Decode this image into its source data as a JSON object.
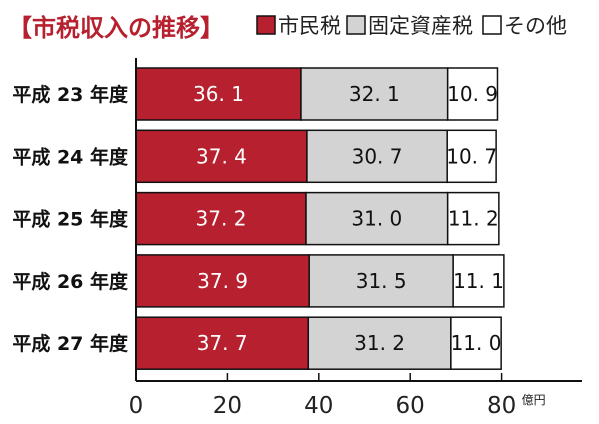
{
  "chart_data": {
    "type": "bar",
    "orientation": "horizontal",
    "stacked": true,
    "title": "【市税収入の推移】",
    "categories": [
      "平成 23 年度",
      "平成 24 年度",
      "平成 25 年度",
      "平成 26 年度",
      "平成 27 年度"
    ],
    "series": [
      {
        "name": "市民税",
        "color": "#b7202e",
        "label_color": "#ffffff",
        "values": [
          36.1,
          37.4,
          37.2,
          37.9,
          37.7
        ],
        "labels": [
          "36. 1",
          "37. 4",
          "37. 2",
          "37. 9",
          "37. 7"
        ]
      },
      {
        "name": "固定資産税",
        "color": "#d3d3d3",
        "label_color": "#111111",
        "values": [
          32.1,
          30.7,
          31.0,
          31.5,
          31.2
        ],
        "labels": [
          "32. 1",
          "30. 7",
          "31. 0",
          "31. 5",
          "31. 2"
        ]
      },
      {
        "name": "その他",
        "color": "#ffffff",
        "label_color": "#111111",
        "values": [
          10.9,
          10.7,
          11.2,
          11.1,
          11.0
        ],
        "labels": [
          "10. 9",
          "10. 7",
          "11. 2",
          "11. 1",
          "11. 0"
        ]
      }
    ],
    "xlim": [
      0,
      80
    ],
    "xticks": [
      0,
      20,
      40,
      60,
      80
    ],
    "xunit": "億円",
    "legend_position": "top-right",
    "grid": false
  }
}
